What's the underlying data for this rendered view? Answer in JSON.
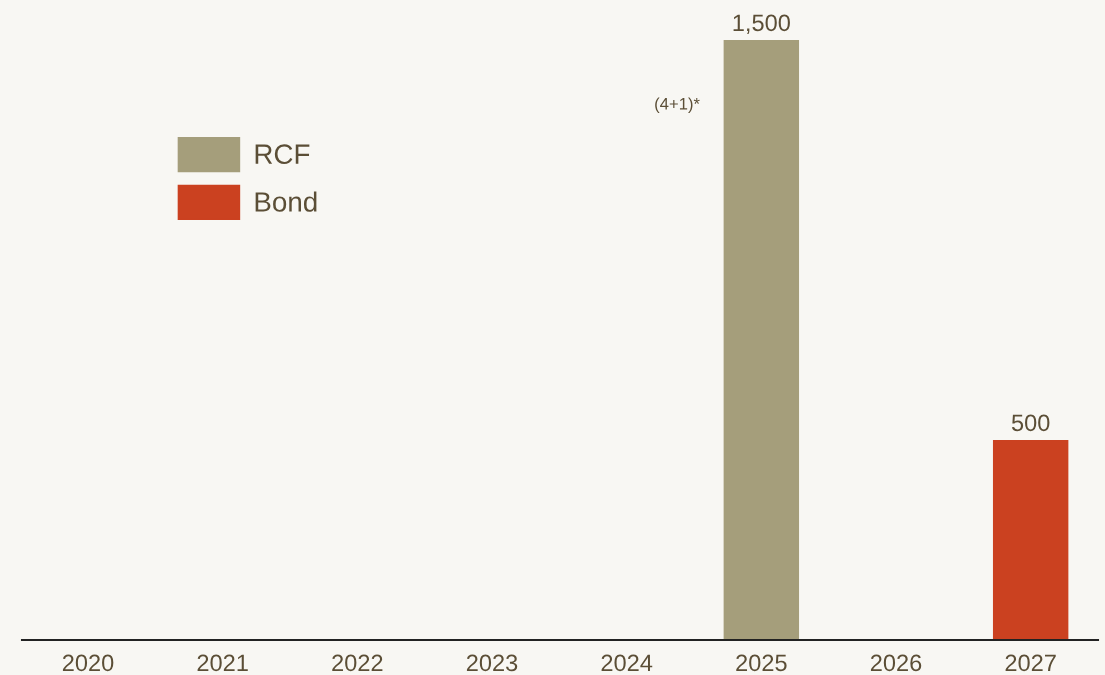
{
  "chart_data": {
    "type": "bar",
    "categories": [
      "2020",
      "2021",
      "2022",
      "2023",
      "2024",
      "2025",
      "2026",
      "2027"
    ],
    "series": [
      {
        "name": "RCF",
        "color": "#a59e7b",
        "values": [
          null,
          null,
          null,
          null,
          null,
          1500,
          null,
          null
        ],
        "value_labels": [
          null,
          null,
          null,
          null,
          null,
          "1,500",
          null,
          null
        ]
      },
      {
        "name": "Bond",
        "color": "#cb4120",
        "values": [
          null,
          null,
          null,
          null,
          null,
          null,
          null,
          500
        ],
        "value_labels": [
          null,
          null,
          null,
          null,
          null,
          null,
          null,
          "500"
        ]
      }
    ],
    "ylim": [
      0,
      1600
    ],
    "tick_labels": "x",
    "grid": false,
    "legend": "top left",
    "annotations": [
      "(4+1)*"
    ]
  }
}
